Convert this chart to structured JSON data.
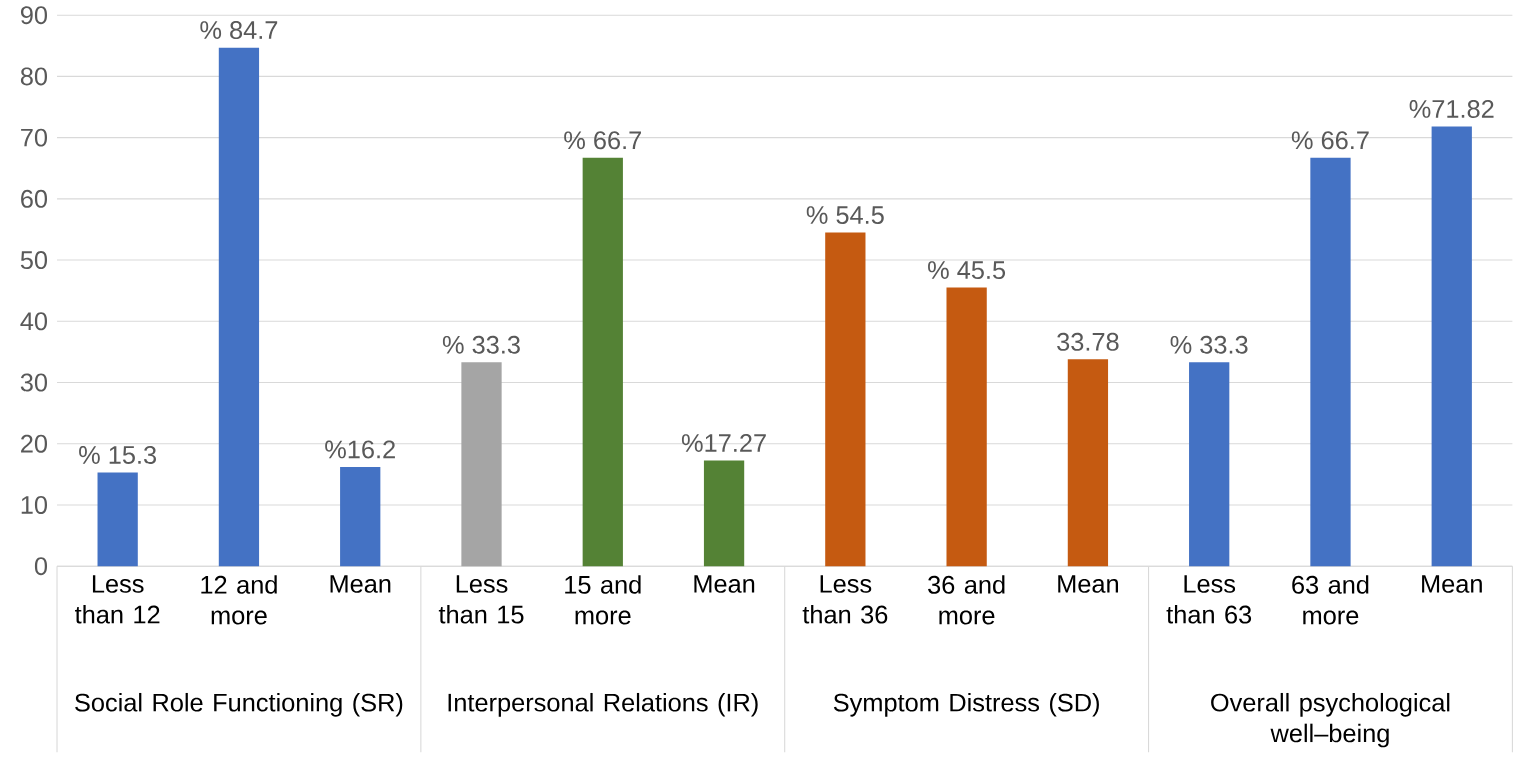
{
  "chart_data": {
    "type": "bar",
    "categories": [
      "Less than 12",
      "12 and more",
      "Mean",
      "Less than 15",
      "15 and more",
      "Mean",
      "Less than 36",
      "36 and more",
      "Mean",
      "Less than 63",
      "63 and more",
      "Mean"
    ],
    "values": [
      15.3,
      84.7,
      16.2,
      33.3,
      66.7,
      17.27,
      54.5,
      45.5,
      33.78,
      33.3,
      66.7,
      71.82
    ],
    "colors": [
      "#4472c4",
      "#4472c4",
      "#4472c4",
      "#a5a5a5",
      "#548235",
      "#548235",
      "#c55a11",
      "#c55a11",
      "#c55a11",
      "#4472c4",
      "#4472c4",
      "#4472c4"
    ],
    "value_labels": [
      "% 15.3",
      "% 84.7",
      "%16.2",
      "% 33.3",
      "% 66.7",
      "%17.27",
      "% 54.5",
      "% 45.5",
      "33.78",
      "% 33.3",
      "% 66.7",
      "%71.82"
    ],
    "annotations": [
      "Social Role Functioning (SR)",
      "Interpersonal Relations (IR)",
      "Symptom Distress (SD)",
      "Overall psychological well–being"
    ],
    "ylim": [
      0,
      90
    ],
    "yticks": [
      0,
      10,
      20,
      30,
      40,
      50,
      60,
      70,
      80,
      90
    ],
    "grid": "y"
  }
}
